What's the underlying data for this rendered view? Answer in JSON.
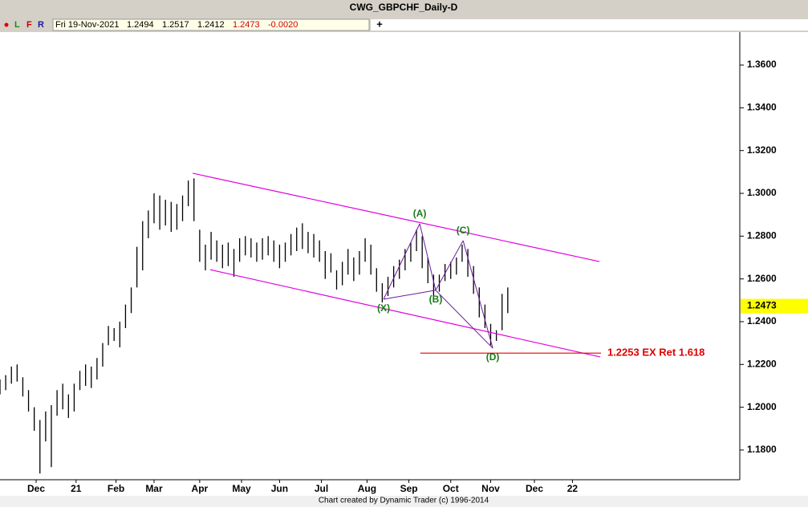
{
  "header": {
    "title": "CWG_GBPCHF_Daily-D",
    "buttons": [
      "L",
      "F",
      "R"
    ],
    "date": "Fri 19-Nov-2021",
    "open": "1.2494",
    "high": "1.2517",
    "low": "1.2412",
    "close": "1.2473",
    "change": "-0.0020",
    "plus": "+"
  },
  "footer": "Chart created by Dynamic Trader  (c) 1996-2014",
  "chart_data": {
    "type": "ohlc",
    "color": "#000000",
    "xlim": [
      0,
      389
    ],
    "ylim": [
      1.1661,
      1.3754
    ],
    "xticks": [
      {
        "value": 19,
        "label": "Dec"
      },
      {
        "value": 40,
        "label": "21"
      },
      {
        "value": 61,
        "label": "Feb"
      },
      {
        "value": 81,
        "label": "Mar"
      },
      {
        "value": 105,
        "label": "Apr"
      },
      {
        "value": 127,
        "label": "May"
      },
      {
        "value": 147,
        "label": "Jun"
      },
      {
        "value": 169,
        "label": "Jul"
      },
      {
        "value": 193,
        "label": "Aug"
      },
      {
        "value": 215,
        "label": "Sep"
      },
      {
        "value": 237,
        "label": "Oct"
      },
      {
        "value": 258,
        "label": "Nov"
      },
      {
        "value": 281,
        "label": "Dec"
      },
      {
        "value": 301,
        "label": "22"
      }
    ],
    "yticks": [
      {
        "value": 1.18,
        "label": "1.1800"
      },
      {
        "value": 1.2,
        "label": "1.2000"
      },
      {
        "value": 1.22,
        "label": "1.2200"
      },
      {
        "value": 1.24,
        "label": "1.2400"
      },
      {
        "value": 1.26,
        "label": "1.2600"
      },
      {
        "value": 1.28,
        "label": "1.2800"
      },
      {
        "value": 1.3,
        "label": "1.3000"
      },
      {
        "value": 1.32,
        "label": "1.3200"
      },
      {
        "value": 1.34,
        "label": "1.3400"
      },
      {
        "value": 1.36,
        "label": "1.3600"
      }
    ],
    "x": [
      0,
      3,
      6,
      9,
      12,
      15,
      18,
      21,
      24,
      27,
      30,
      33,
      36,
      39,
      42,
      45,
      48,
      51,
      54,
      57,
      60,
      63,
      66,
      69,
      72,
      75,
      78,
      81,
      84,
      87,
      90,
      93,
      96,
      99,
      102,
      105,
      108,
      111,
      114,
      117,
      120,
      123,
      126,
      129,
      132,
      135,
      138,
      141,
      144,
      147,
      150,
      153,
      156,
      159,
      162,
      165,
      168,
      171,
      174,
      177,
      180,
      183,
      186,
      189,
      192,
      195,
      198,
      201,
      204,
      207,
      210,
      213,
      216,
      219,
      222,
      225,
      228,
      231,
      234,
      237,
      240,
      243,
      246,
      249,
      252,
      255,
      258,
      261,
      264,
      267
    ],
    "high": [
      1.213,
      1.215,
      1.219,
      1.22,
      1.214,
      1.208,
      1.2,
      1.194,
      1.198,
      1.201,
      1.208,
      1.211,
      1.206,
      1.211,
      1.217,
      1.22,
      1.219,
      1.223,
      1.23,
      1.238,
      1.237,
      1.24,
      1.248,
      1.256,
      1.275,
      1.287,
      1.292,
      1.3,
      1.299,
      1.297,
      1.296,
      1.295,
      1.299,
      1.306,
      1.307,
      1.283,
      1.276,
      1.282,
      1.278,
      1.276,
      1.277,
      1.274,
      1.279,
      1.28,
      1.279,
      1.277,
      1.279,
      1.28,
      1.278,
      1.276,
      1.277,
      1.281,
      1.284,
      1.286,
      1.282,
      1.281,
      1.278,
      1.273,
      1.272,
      1.264,
      1.268,
      1.274,
      1.27,
      1.273,
      1.279,
      1.276,
      1.265,
      1.258,
      1.261,
      1.266,
      1.269,
      1.274,
      1.277,
      1.283,
      1.28,
      1.27,
      1.262,
      1.262,
      1.267,
      1.268,
      1.27,
      1.276,
      1.274,
      1.266,
      1.256,
      1.248,
      1.239,
      1.236,
      1.253,
      1.256
    ],
    "low": [
      1.206,
      1.208,
      1.211,
      1.212,
      1.205,
      1.198,
      1.189,
      1.169,
      1.184,
      1.172,
      1.196,
      1.199,
      1.195,
      1.198,
      1.208,
      1.21,
      1.209,
      1.213,
      1.219,
      1.229,
      1.231,
      1.228,
      1.237,
      1.244,
      1.256,
      1.264,
      1.279,
      1.286,
      1.283,
      1.285,
      1.282,
      1.283,
      1.287,
      1.294,
      1.287,
      1.268,
      1.264,
      1.269,
      1.268,
      1.265,
      1.266,
      1.261,
      1.268,
      1.271,
      1.27,
      1.268,
      1.269,
      1.271,
      1.268,
      1.265,
      1.268,
      1.271,
      1.273,
      1.274,
      1.272,
      1.27,
      1.268,
      1.26,
      1.263,
      1.255,
      1.257,
      1.262,
      1.259,
      1.262,
      1.268,
      1.262,
      1.254,
      1.249,
      1.252,
      1.256,
      1.26,
      1.264,
      1.268,
      1.273,
      1.265,
      1.258,
      1.252,
      1.254,
      1.259,
      1.26,
      1.262,
      1.268,
      1.261,
      1.253,
      1.242,
      1.237,
      1.229,
      1.231,
      1.236,
      1.244
    ],
    "last_price": {
      "value": 1.2473,
      "label": "1.2473",
      "color": "#ffff00"
    },
    "channel": {
      "color": "#e000e0",
      "lines": [
        {
          "x": [
            101.3,
            315.2
          ],
          "y": [
            1.3094,
            1.2681
          ]
        },
        {
          "x": [
            110.5,
            315.6
          ],
          "y": [
            1.2643,
            1.2235
          ]
        }
      ]
    },
    "pattern": {
      "color": "#6a1b9a",
      "label_color": "#1a7a1a",
      "points": [
        {
          "label": "(X)",
          "x": 201.7,
          "y": 1.2505
        },
        {
          "label": "(A)",
          "x": 220.7,
          "y": 1.2858
        },
        {
          "label": "(B)",
          "x": 229.1,
          "y": 1.2547
        },
        {
          "label": "(C)",
          "x": 243.5,
          "y": 1.2779
        },
        {
          "label": "(D)",
          "x": 259.1,
          "y": 1.2276
        }
      ]
    },
    "target": {
      "level": 1.2253,
      "x": [
        221,
        316
      ],
      "label": "1.2253 EX Ret 1.618",
      "color": "#e00000"
    }
  }
}
